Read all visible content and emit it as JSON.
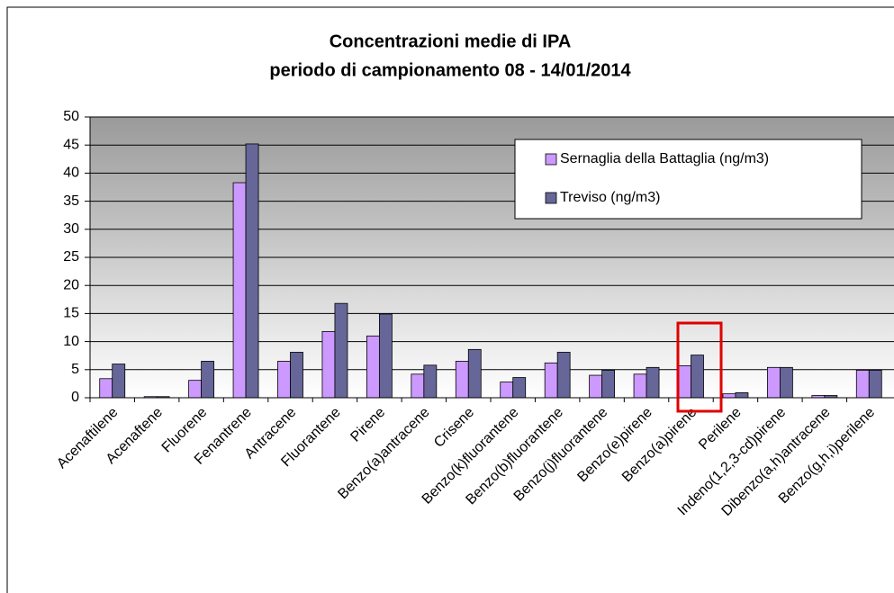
{
  "chart_data": {
    "type": "bar",
    "title": [
      "Concentrazioni medie di IPA",
      "periodo di campionamento 08 - 14/01/2014"
    ],
    "categories": [
      "Acenaftilene",
      "Acenaftene",
      "Fluorene",
      "Fenantrene",
      "Antracene",
      "Fluorantene",
      "Pirene",
      "Benzo(a)antracene",
      "Crisene",
      "Benzo(k)fluorantene",
      "Benzo(b)fluorantene",
      "Benzo(j)fluorantene",
      "Benzo(e)pirene",
      "Benzo(a)pirene",
      "Perilene",
      "Indeno(1,2,3-cd)pirene",
      "Dibenzo(a,h)antracene",
      "Benzo(g,h,i)perilene"
    ],
    "series": [
      {
        "name": "Sernaglia della Battaglia (ng/m3)",
        "color": "#cc99ff",
        "values": [
          3.4,
          0.2,
          3.1,
          38.3,
          6.5,
          11.8,
          11.0,
          4.2,
          6.5,
          2.8,
          6.2,
          4.0,
          4.2,
          5.7,
          0.7,
          5.4,
          0.4,
          4.9
        ]
      },
      {
        "name": "Treviso (ng/m3)",
        "color": "#666699",
        "values": [
          6.0,
          0.2,
          6.5,
          45.2,
          8.1,
          16.8,
          14.9,
          5.8,
          8.6,
          3.6,
          8.1,
          4.9,
          5.4,
          7.6,
          0.9,
          5.4,
          0.4,
          4.9
        ]
      }
    ],
    "ylim": [
      0,
      50
    ],
    "yticks": [
      0,
      5,
      10,
      15,
      20,
      25,
      30,
      35,
      40,
      45,
      50
    ],
    "grid": true
  }
}
